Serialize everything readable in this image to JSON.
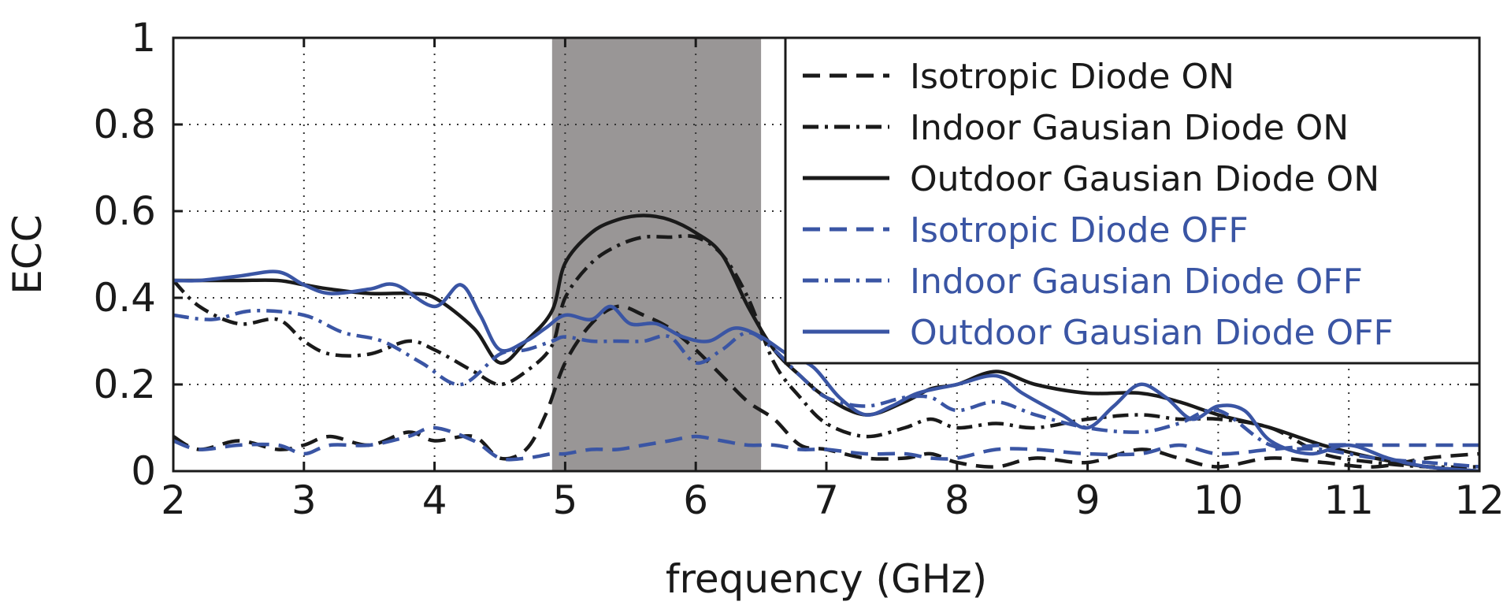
{
  "chart_data": {
    "type": "line",
    "title": "",
    "xlabel": "frequency (GHz)",
    "ylabel": "ECC",
    "xlim": [
      2,
      12
    ],
    "ylim": [
      0,
      1
    ],
    "x_ticks": [
      "2",
      "3",
      "4",
      "5",
      "6",
      "7",
      "8",
      "9",
      "10",
      "11",
      "12"
    ],
    "y_ticks": [
      "0",
      "0.2",
      "0.4",
      "0.6",
      "0.8",
      "1"
    ],
    "grid": true,
    "legend_position": "top-right",
    "shaded_band": {
      "x_start": 4.9,
      "x_end": 6.5,
      "color": "#999696"
    },
    "colors": {
      "black": "#1a1a1a",
      "blue": "#3a55a4"
    },
    "series": [
      {
        "name": "Isotropic Diode ON",
        "color": "#1a1a1a",
        "style": "dashed",
        "x": [
          2,
          2.2,
          2.5,
          2.8,
          3.0,
          3.2,
          3.5,
          3.8,
          4.0,
          4.3,
          4.5,
          4.7,
          4.85,
          5.0,
          5.2,
          5.4,
          5.6,
          5.8,
          6.0,
          6.2,
          6.4,
          6.6,
          6.8,
          7.0,
          7.3,
          7.6,
          7.8,
          8.0,
          8.3,
          8.6,
          9.0,
          9.4,
          9.7,
          10.0,
          10.4,
          10.8,
          11.2,
          11.6,
          12.0
        ],
        "y": [
          0.08,
          0.05,
          0.07,
          0.05,
          0.06,
          0.08,
          0.06,
          0.09,
          0.07,
          0.08,
          0.03,
          0.05,
          0.13,
          0.25,
          0.34,
          0.38,
          0.36,
          0.33,
          0.28,
          0.22,
          0.16,
          0.12,
          0.06,
          0.05,
          0.03,
          0.03,
          0.04,
          0.02,
          0.01,
          0.03,
          0.02,
          0.05,
          0.03,
          0.01,
          0.03,
          0.02,
          0.01,
          0.03,
          0.04
        ]
      },
      {
        "name": "Indoor Gausian Diode ON",
        "color": "#1a1a1a",
        "style": "dashdot",
        "x": [
          2,
          2.2,
          2.5,
          2.8,
          3.0,
          3.2,
          3.5,
          3.8,
          4.0,
          4.3,
          4.5,
          4.7,
          4.9,
          5.0,
          5.2,
          5.4,
          5.6,
          5.8,
          6.0,
          6.2,
          6.4,
          6.6,
          6.8,
          7.0,
          7.3,
          7.6,
          7.8,
          8.0,
          8.3,
          8.6,
          9.0,
          9.4,
          9.7,
          10.0,
          10.4,
          10.8,
          11.2,
          11.6,
          12.0
        ],
        "y": [
          0.44,
          0.38,
          0.34,
          0.35,
          0.3,
          0.27,
          0.27,
          0.3,
          0.28,
          0.23,
          0.2,
          0.23,
          0.29,
          0.4,
          0.48,
          0.52,
          0.54,
          0.54,
          0.54,
          0.5,
          0.4,
          0.25,
          0.17,
          0.11,
          0.08,
          0.1,
          0.12,
          0.1,
          0.11,
          0.1,
          0.12,
          0.13,
          0.12,
          0.12,
          0.1,
          0.04,
          0.02,
          0.01,
          0.01
        ]
      },
      {
        "name": "Outdoor Gausian Diode ON",
        "color": "#1a1a1a",
        "style": "solid",
        "x": [
          2,
          2.2,
          2.5,
          2.8,
          3.0,
          3.2,
          3.5,
          3.8,
          4.0,
          4.3,
          4.5,
          4.7,
          4.9,
          5.0,
          5.2,
          5.4,
          5.6,
          5.8,
          6.0,
          6.2,
          6.4,
          6.6,
          6.8,
          7.0,
          7.3,
          7.6,
          7.8,
          8.0,
          8.3,
          8.6,
          9.0,
          9.4,
          9.7,
          10.0,
          10.4,
          10.8,
          11.2,
          11.6,
          12.0
        ],
        "y": [
          0.44,
          0.44,
          0.44,
          0.44,
          0.43,
          0.42,
          0.41,
          0.41,
          0.4,
          0.33,
          0.25,
          0.3,
          0.37,
          0.48,
          0.55,
          0.58,
          0.59,
          0.58,
          0.55,
          0.5,
          0.38,
          0.28,
          0.22,
          0.17,
          0.13,
          0.16,
          0.19,
          0.2,
          0.23,
          0.2,
          0.18,
          0.18,
          0.16,
          0.13,
          0.1,
          0.06,
          0.03,
          0.01,
          0.0
        ]
      },
      {
        "name": "Isotropic Diode OFF",
        "color": "#3a55a4",
        "style": "dashed",
        "x": [
          2,
          2.2,
          2.5,
          2.8,
          3.0,
          3.2,
          3.5,
          3.8,
          4.0,
          4.3,
          4.5,
          4.7,
          4.9,
          5.0,
          5.2,
          5.4,
          5.6,
          5.8,
          6.0,
          6.2,
          6.4,
          6.6,
          6.8,
          7.0,
          7.3,
          7.6,
          7.8,
          8.0,
          8.3,
          8.6,
          9.0,
          9.4,
          9.7,
          10.0,
          10.4,
          10.8,
          11.2,
          11.6,
          12.0
        ],
        "y": [
          0.07,
          0.05,
          0.06,
          0.06,
          0.04,
          0.06,
          0.06,
          0.08,
          0.1,
          0.07,
          0.03,
          0.03,
          0.04,
          0.04,
          0.05,
          0.05,
          0.06,
          0.07,
          0.08,
          0.07,
          0.06,
          0.06,
          0.05,
          0.05,
          0.04,
          0.04,
          0.03,
          0.03,
          0.05,
          0.05,
          0.04,
          0.04,
          0.06,
          0.04,
          0.05,
          0.06,
          0.06,
          0.06,
          0.06
        ]
      },
      {
        "name": "Indoor Gausian Diode OFF",
        "color": "#3a55a4",
        "style": "dashdot",
        "x": [
          2,
          2.3,
          2.6,
          3.0,
          3.3,
          3.6,
          3.9,
          4.2,
          4.5,
          4.7,
          4.9,
          5.0,
          5.2,
          5.4,
          5.6,
          5.8,
          6.0,
          6.2,
          6.4,
          6.6,
          6.8,
          7.0,
          7.3,
          7.6,
          7.8,
          8.0,
          8.3,
          8.6,
          9.0,
          9.4,
          9.7,
          10.0,
          10.4,
          10.8,
          11.2,
          11.6,
          12.0
        ],
        "y": [
          0.36,
          0.35,
          0.37,
          0.36,
          0.32,
          0.3,
          0.25,
          0.2,
          0.27,
          0.28,
          0.3,
          0.31,
          0.3,
          0.3,
          0.3,
          0.31,
          0.25,
          0.28,
          0.32,
          0.28,
          0.22,
          0.17,
          0.15,
          0.17,
          0.17,
          0.14,
          0.16,
          0.13,
          0.1,
          0.09,
          0.11,
          0.14,
          0.06,
          0.05,
          0.03,
          0.02,
          0.01
        ]
      },
      {
        "name": "Outdoor Gausian Diode OFF",
        "color": "#3a55a4",
        "style": "solid",
        "x": [
          2,
          2.2,
          2.5,
          2.8,
          3.0,
          3.2,
          3.5,
          3.7,
          4.0,
          4.2,
          4.35,
          4.5,
          4.7,
          4.85,
          5.0,
          5.2,
          5.35,
          5.5,
          5.7,
          5.9,
          6.1,
          6.3,
          6.5,
          6.7,
          6.9,
          7.1,
          7.3,
          7.5,
          7.7,
          8.0,
          8.3,
          8.5,
          8.8,
          9.0,
          9.2,
          9.4,
          9.6,
          9.8,
          10.0,
          10.2,
          10.4,
          10.7,
          11.0,
          11.3,
          11.6,
          12.0
        ],
        "y": [
          0.44,
          0.44,
          0.45,
          0.46,
          0.43,
          0.41,
          0.42,
          0.43,
          0.38,
          0.43,
          0.36,
          0.28,
          0.3,
          0.33,
          0.36,
          0.35,
          0.38,
          0.34,
          0.34,
          0.31,
          0.3,
          0.33,
          0.31,
          0.27,
          0.24,
          0.17,
          0.13,
          0.15,
          0.18,
          0.2,
          0.22,
          0.18,
          0.13,
          0.1,
          0.15,
          0.2,
          0.17,
          0.12,
          0.15,
          0.14,
          0.07,
          0.04,
          0.06,
          0.03,
          0.01,
          0.0
        ]
      }
    ]
  }
}
